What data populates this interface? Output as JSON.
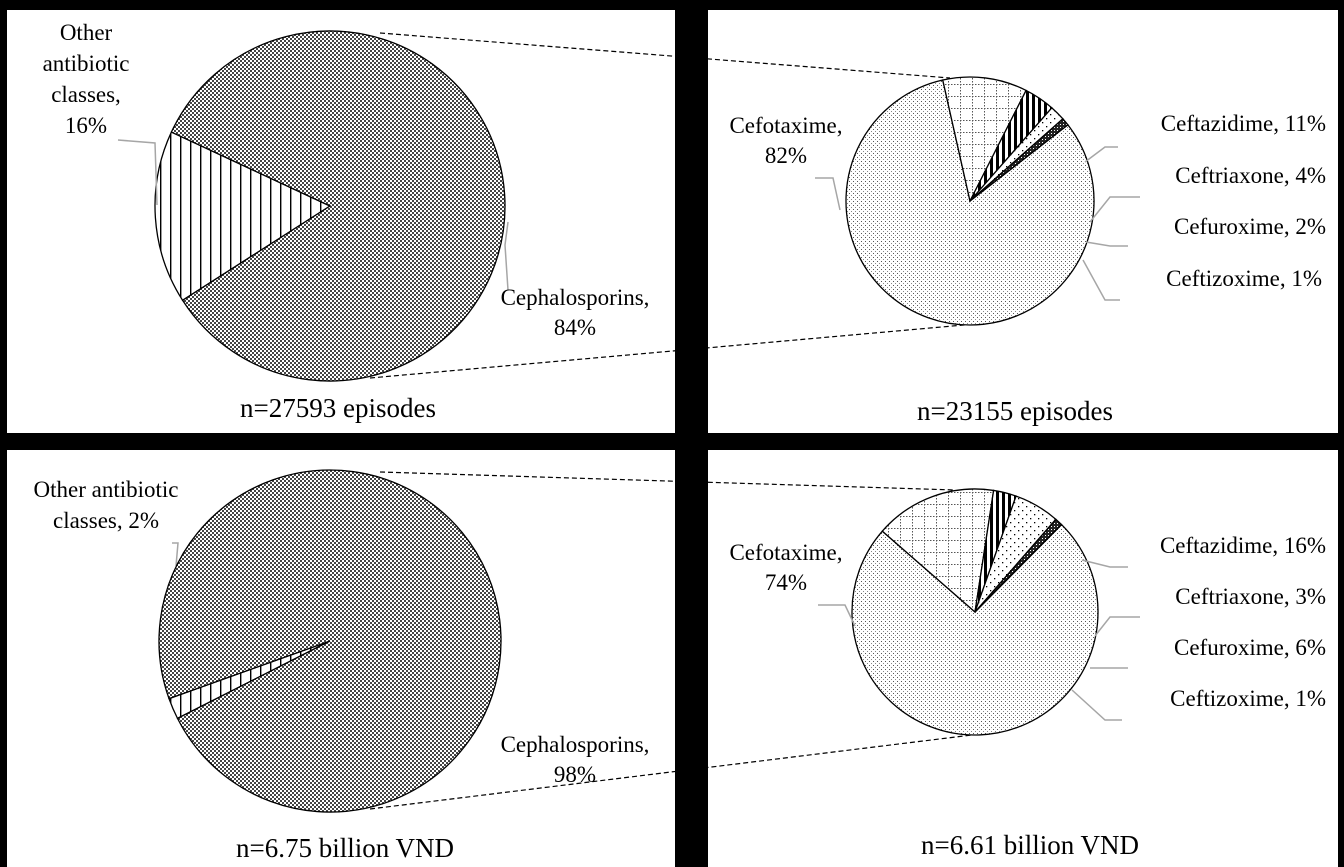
{
  "chart_data": [
    {
      "type": "pie",
      "caption": "n=27593 episodes",
      "slices": [
        {
          "label_lines": [
            "Other",
            "antibiotic",
            "classes,",
            "16%"
          ],
          "value": 16,
          "pattern": "vstripes"
        },
        {
          "label_lines": [
            "Cephalosporins,",
            "84%"
          ],
          "value": 84,
          "pattern": "checker"
        }
      ]
    },
    {
      "type": "pie",
      "caption": "n=23155 episodes",
      "slices": [
        {
          "label_lines": [
            "Cefotaxime,",
            "82%"
          ],
          "value": 82,
          "pattern": "dots"
        },
        {
          "label_lines": [
            "Ceftazidime, 11%"
          ],
          "value": 11,
          "pattern": "grid"
        },
        {
          "label_lines": [
            "Ceftriaxone, 4%"
          ],
          "value": 4,
          "pattern": "thickstripes"
        },
        {
          "label_lines": [
            "Cefuroxime, 2%"
          ],
          "value": 2,
          "pattern": "sparsedots"
        },
        {
          "label_lines": [
            "Ceftizoxime, 1%"
          ],
          "value": 1,
          "pattern": "dark"
        }
      ]
    },
    {
      "type": "pie",
      "caption": "n=6.75 billion VND",
      "slices": [
        {
          "label_lines": [
            "Other antibiotic",
            "classes, 2%"
          ],
          "value": 2,
          "pattern": "vstripes"
        },
        {
          "label_lines": [
            "Cephalosporins,",
            "98%"
          ],
          "value": 98,
          "pattern": "checker"
        }
      ]
    },
    {
      "type": "pie",
      "caption": "n=6.61 billion VND",
      "slices": [
        {
          "label_lines": [
            "Cefotaxime,",
            "74%"
          ],
          "value": 74,
          "pattern": "dots"
        },
        {
          "label_lines": [
            "Ceftazidime, 16%"
          ],
          "value": 16,
          "pattern": "grid"
        },
        {
          "label_lines": [
            "Ceftriaxone, 3%"
          ],
          "value": 3,
          "pattern": "thickstripes"
        },
        {
          "label_lines": [
            "Cefuroxime, 6%"
          ],
          "value": 6,
          "pattern": "sparsedots"
        },
        {
          "label_lines": [
            "Ceftizoxime, 1%"
          ],
          "value": 1,
          "pattern": "dark"
        }
      ]
    }
  ]
}
